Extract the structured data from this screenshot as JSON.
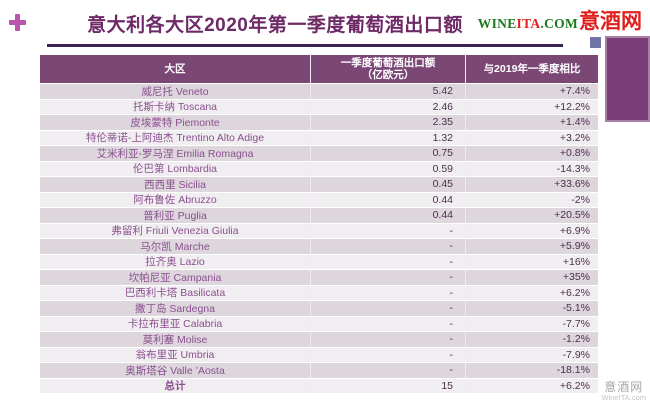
{
  "page": {
    "title": "意大利各大区2020年第一季度葡萄酒出口额"
  },
  "logo": {
    "wine": "WINE",
    "ita": "ITA",
    "com": ".COM",
    "cn": "意酒网"
  },
  "watermark": {
    "line1": "意酒网",
    "line2": "WineITA.com"
  },
  "table": {
    "header_region": "大区",
    "header_export_line1": "一季度葡萄酒出口额",
    "header_export_line2": "（亿欧元）",
    "header_yoy": "与2019年一季度相比"
  },
  "colors": {
    "header_bg": "#7b4876",
    "row_odd_bg": "#ddd6dc",
    "row_even_bg": "#f1eef1",
    "row_text": "#8a4f8f",
    "value_text": "#4d2f4d",
    "title_text": "#6e2a66",
    "logo_red": "#e02020",
    "logo_green": "#1a7a1a",
    "plus_icon": "#bb55ae",
    "deco_square": "#6f76a5",
    "deco_rect": "#7b3d78",
    "watermark": "#a9a4a9"
  },
  "chart_data": {
    "type": "table",
    "title": "意大利各大区2020年第一季度葡萄酒出口额",
    "columns": [
      "大区",
      "一季度葡萄酒出口额（亿欧元）",
      "与2019年一季度相比"
    ],
    "rows": [
      {
        "region_cn": "威尼托",
        "region_it": "Veneto",
        "export": "5.42",
        "yoy": "+7.4%"
      },
      {
        "region_cn": "托斯卡纳",
        "region_it": "Toscana",
        "export": "2.46",
        "yoy": "+12.2%"
      },
      {
        "region_cn": "皮埃蒙特",
        "region_it": "Piemonte",
        "export": "2.35",
        "yoy": "+1.4%"
      },
      {
        "region_cn": "特伦蒂诺-上阿迪杰",
        "region_it": "Trentino Alto Adige",
        "export": "1.32",
        "yoy": "+3.2%"
      },
      {
        "region_cn": "艾米利亚-罗马涅",
        "region_it": "Emilia Romagna",
        "export": "0.75",
        "yoy": "+0.8%"
      },
      {
        "region_cn": "伦巴第",
        "region_it": "Lombardia",
        "export": "0.59",
        "yoy": "-14.3%"
      },
      {
        "region_cn": "西西里",
        "region_it": "Sicilia",
        "export": "0.45",
        "yoy": "+33.6%"
      },
      {
        "region_cn": "阿布鲁佐",
        "region_it": "Abruzzo",
        "export": "0.44",
        "yoy": "-2%"
      },
      {
        "region_cn": "普利亚",
        "region_it": "Puglia",
        "export": "0.44",
        "yoy": "+20.5%"
      },
      {
        "region_cn": "弗留利",
        "region_it": "Friuli Venezia Giulia",
        "export": "-",
        "yoy": "+6.9%"
      },
      {
        "region_cn": "马尔凯",
        "region_it": "Marche",
        "export": "-",
        "yoy": "+5.9%"
      },
      {
        "region_cn": "拉齐奥",
        "region_it": "Lazio",
        "export": "-",
        "yoy": "+16%"
      },
      {
        "region_cn": "坎帕尼亚",
        "region_it": "Campania",
        "export": "-",
        "yoy": "+35%"
      },
      {
        "region_cn": "巴西利卡塔",
        "region_it": "Basilicata",
        "export": "-",
        "yoy": "+6.2%"
      },
      {
        "region_cn": "撒丁岛",
        "region_it": "Sardegna",
        "export": "-",
        "yoy": "-5.1%"
      },
      {
        "region_cn": "卡拉布里亚",
        "region_it": "Calabria",
        "export": "-",
        "yoy": "-7.7%"
      },
      {
        "region_cn": "莫利塞",
        "region_it": "Molise",
        "export": "-",
        "yoy": "-1.2%"
      },
      {
        "region_cn": "翁布里亚",
        "region_it": "Umbria",
        "export": "-",
        "yoy": "-7.9%"
      },
      {
        "region_cn": "奥斯塔谷",
        "region_it": "Valle ’Aosta",
        "export": "-",
        "yoy": "-18.1%"
      },
      {
        "region_cn": "总计",
        "region_it": "",
        "export": "15",
        "yoy": "+6.2%",
        "is_total": true
      }
    ]
  }
}
